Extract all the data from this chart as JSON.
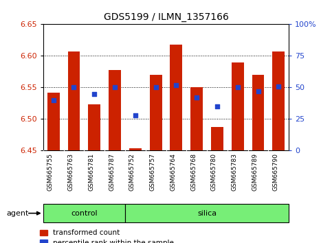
{
  "title": "GDS5199 / ILMN_1357166",
  "samples": [
    "GSM665755",
    "GSM665763",
    "GSM665781",
    "GSM665787",
    "GSM665752",
    "GSM665757",
    "GSM665764",
    "GSM665768",
    "GSM665780",
    "GSM665783",
    "GSM665789",
    "GSM665790"
  ],
  "bar_tops": [
    6.542,
    6.607,
    6.523,
    6.578,
    6.454,
    6.57,
    6.618,
    6.55,
    6.487,
    6.59,
    6.57,
    6.607
  ],
  "bar_bottom": 6.45,
  "percentile_ranks": [
    40,
    50,
    45,
    50,
    28,
    50,
    52,
    42,
    35,
    50,
    47,
    51
  ],
  "ylim": [
    6.45,
    6.65
  ],
  "yticks": [
    6.45,
    6.5,
    6.55,
    6.6,
    6.65
  ],
  "right_yticks": [
    0,
    25,
    50,
    75,
    100
  ],
  "bar_color": "#cc2200",
  "dot_color": "#2244cc",
  "group_labels": [
    "control",
    "silica"
  ],
  "group_ranges": [
    [
      0,
      4
    ],
    [
      4,
      12
    ]
  ],
  "agent_label": "agent",
  "legend_bar_label": "transformed count",
  "legend_dot_label": "percentile rank within the sample",
  "background_color": "#ffffff",
  "xlabel_color": "#cc2200",
  "right_axis_color": "#2244cc",
  "bar_width": 0.6,
  "tick_label_bg": "#dddddd",
  "group_bg": "#77ee77"
}
